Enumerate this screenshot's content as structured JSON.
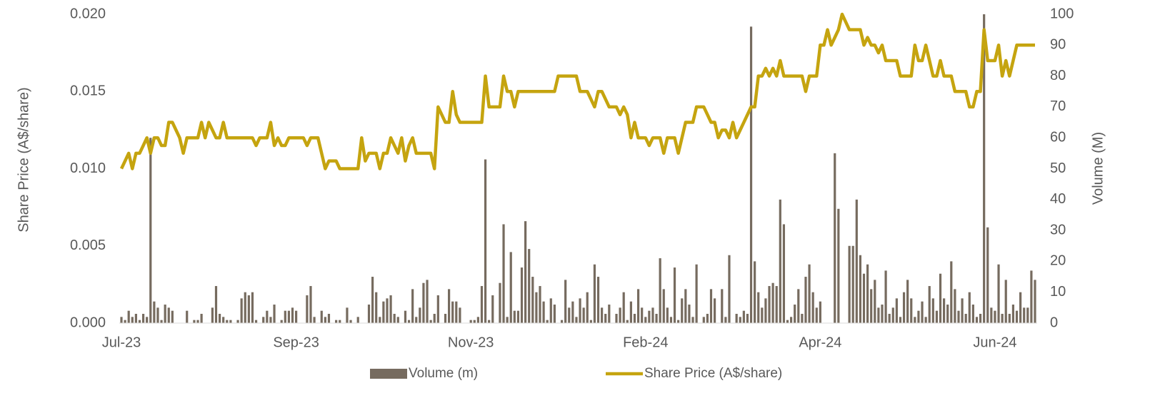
{
  "chart_data": {
    "type": "combo",
    "y_label": "Share Price (A$/share)",
    "y2_label": "Volume (M)",
    "categories": [
      "Jul-23",
      null,
      null,
      null,
      null,
      null,
      null,
      null,
      null,
      null,
      null,
      null,
      null,
      null,
      null,
      null,
      null,
      null,
      null,
      null,
      null,
      null,
      null,
      null,
      null,
      null,
      null,
      null,
      null,
      null,
      null,
      null,
      null,
      null,
      null,
      null,
      null,
      null,
      null,
      null,
      null,
      null,
      null,
      null,
      null,
      null,
      null,
      null,
      "Sep-23",
      null,
      null,
      null,
      null,
      null,
      null,
      null,
      null,
      null,
      null,
      null,
      null,
      null,
      null,
      null,
      null,
      null,
      null,
      null,
      null,
      null,
      null,
      null,
      null,
      null,
      null,
      null,
      null,
      null,
      null,
      null,
      null,
      null,
      null,
      null,
      null,
      null,
      null,
      null,
      null,
      null,
      null,
      null,
      null,
      null,
      null,
      null,
      "Nov-23",
      null,
      null,
      null,
      null,
      null,
      null,
      null,
      null,
      null,
      null,
      null,
      null,
      null,
      null,
      null,
      null,
      null,
      null,
      null,
      null,
      null,
      null,
      null,
      null,
      null,
      null,
      null,
      null,
      null,
      null,
      null,
      null,
      null,
      null,
      null,
      null,
      null,
      null,
      null,
      null,
      null,
      null,
      null,
      null,
      null,
      null,
      null,
      "Feb-24",
      null,
      null,
      null,
      null,
      null,
      null,
      null,
      null,
      null,
      null,
      null,
      null,
      null,
      null,
      null,
      null,
      null,
      null,
      null,
      null,
      null,
      null,
      null,
      null,
      null,
      null,
      null,
      null,
      null,
      null,
      null,
      null,
      null,
      null,
      null,
      null,
      null,
      null,
      null,
      null,
      null,
      null,
      null,
      null,
      null,
      null,
      null,
      "Apr-24",
      null,
      null,
      null,
      null,
      null,
      null,
      null,
      null,
      null,
      null,
      null,
      null,
      null,
      null,
      null,
      null,
      null,
      null,
      null,
      null,
      null,
      null,
      null,
      null,
      null,
      null,
      null,
      null,
      null,
      null,
      null,
      null,
      null,
      null,
      null,
      null,
      null,
      null,
      null,
      null,
      null,
      null,
      null,
      null,
      null,
      null,
      null,
      "Jun-24",
      null,
      null,
      null,
      null,
      null,
      null,
      null,
      null,
      null,
      null,
      null
    ],
    "series": [
      {
        "name": "Volume (m)",
        "type": "bar",
        "axis": "y2",
        "color": "#766b5f",
        "values": [
          2,
          1,
          4,
          2,
          3,
          1,
          3,
          2,
          60,
          7,
          5,
          1,
          6,
          5,
          4,
          0,
          0,
          0,
          4,
          0,
          1,
          1,
          3,
          0,
          0,
          5,
          12,
          3,
          2,
          1,
          1,
          0,
          1,
          8,
          10,
          9,
          10,
          1,
          0,
          2,
          4,
          2,
          6,
          0,
          1,
          4,
          4,
          5,
          4,
          0,
          0,
          9,
          12,
          2,
          0,
          4,
          2,
          3,
          0,
          1,
          1,
          0,
          5,
          1,
          0,
          2,
          0,
          0,
          6,
          15,
          10,
          2,
          7,
          8,
          9,
          3,
          2,
          0,
          4,
          1,
          11,
          2,
          5,
          13,
          14,
          1,
          3,
          9,
          0,
          3,
          11,
          7,
          7,
          5,
          0,
          0,
          1,
          1,
          2,
          12,
          53,
          1,
          9,
          0,
          13,
          32,
          2,
          23,
          4,
          4,
          18,
          33,
          24,
          15,
          10,
          12,
          7,
          1,
          8,
          6,
          0,
          1,
          14,
          5,
          7,
          2,
          8,
          5,
          10,
          1,
          19,
          15,
          5,
          3,
          6,
          0,
          3,
          5,
          10,
          1,
          7,
          3,
          11,
          5,
          2,
          4,
          5,
          3,
          21,
          11,
          5,
          2,
          18,
          1,
          8,
          11,
          6,
          2,
          19,
          0,
          2,
          3,
          11,
          8,
          0,
          11,
          2,
          22,
          0,
          3,
          2,
          4,
          3,
          96,
          20,
          10,
          5,
          8,
          12,
          13,
          12,
          40,
          32,
          1,
          2,
          6,
          11,
          3,
          15,
          19,
          10,
          5,
          7,
          0,
          0,
          0,
          55,
          37,
          0,
          0,
          25,
          25,
          40,
          22,
          16,
          19,
          11,
          14,
          5,
          6,
          17,
          3,
          5,
          8,
          2,
          10,
          14,
          8,
          2,
          4,
          7,
          2,
          12,
          8,
          4,
          16,
          8,
          6,
          20,
          11,
          4,
          8,
          3,
          10,
          6,
          2,
          3,
          100,
          31,
          5,
          4,
          19,
          3,
          14,
          3,
          6,
          4,
          10,
          5,
          5,
          17,
          14
        ]
      },
      {
        "name": "Share Price (A$/share)",
        "type": "line",
        "axis": "y",
        "color": "#c5a40f",
        "values": [
          0.01,
          0.0105,
          0.011,
          0.01,
          0.011,
          0.011,
          0.0115,
          0.012,
          0.011,
          0.012,
          0.012,
          0.0115,
          0.0115,
          0.013,
          0.013,
          0.0125,
          0.012,
          0.011,
          0.012,
          0.012,
          0.012,
          0.012,
          0.013,
          0.012,
          0.013,
          0.0125,
          0.012,
          0.012,
          0.013,
          0.012,
          0.012,
          0.012,
          0.012,
          0.012,
          0.012,
          0.012,
          0.012,
          0.0115,
          0.012,
          0.012,
          0.012,
          0.013,
          0.0115,
          0.012,
          0.0115,
          0.0115,
          0.012,
          0.012,
          0.012,
          0.012,
          0.012,
          0.0115,
          0.012,
          0.012,
          0.012,
          0.011,
          0.01,
          0.0105,
          0.0105,
          0.0105,
          0.01,
          0.01,
          0.01,
          0.01,
          0.01,
          0.01,
          0.012,
          0.0105,
          0.011,
          0.011,
          0.011,
          0.01,
          0.011,
          0.011,
          0.012,
          0.0115,
          0.011,
          0.012,
          0.0105,
          0.0115,
          0.012,
          0.011,
          0.011,
          0.011,
          0.011,
          0.011,
          0.01,
          0.014,
          0.0135,
          0.013,
          0.013,
          0.015,
          0.0135,
          0.013,
          0.013,
          0.013,
          0.013,
          0.013,
          0.013,
          0.013,
          0.016,
          0.014,
          0.014,
          0.014,
          0.014,
          0.016,
          0.015,
          0.015,
          0.014,
          0.015,
          0.015,
          0.015,
          0.015,
          0.015,
          0.015,
          0.015,
          0.015,
          0.015,
          0.015,
          0.015,
          0.016,
          0.016,
          0.016,
          0.016,
          0.016,
          0.016,
          0.015,
          0.015,
          0.015,
          0.0145,
          0.014,
          0.015,
          0.015,
          0.0145,
          0.014,
          0.014,
          0.014,
          0.0135,
          0.014,
          0.0135,
          0.012,
          0.013,
          0.012,
          0.012,
          0.012,
          0.0115,
          0.012,
          0.012,
          0.012,
          0.011,
          0.012,
          0.012,
          0.012,
          0.011,
          0.012,
          0.013,
          0.013,
          0.013,
          0.014,
          0.014,
          0.014,
          0.0135,
          0.013,
          0.013,
          0.012,
          0.0125,
          0.0125,
          0.012,
          0.013,
          0.012,
          0.0125,
          0.013,
          0.0135,
          0.014,
          0.014,
          0.016,
          0.016,
          0.0165,
          0.016,
          0.0165,
          0.016,
          0.017,
          0.016,
          0.016,
          0.016,
          0.016,
          0.016,
          0.016,
          0.015,
          0.016,
          0.016,
          0.016,
          0.018,
          0.018,
          0.019,
          0.018,
          0.0185,
          0.019,
          0.02,
          0.0195,
          0.019,
          0.019,
          0.019,
          0.019,
          0.018,
          0.0185,
          0.018,
          0.018,
          0.0175,
          0.018,
          0.017,
          0.017,
          0.017,
          0.017,
          0.016,
          0.016,
          0.016,
          0.016,
          0.018,
          0.017,
          0.017,
          0.018,
          0.017,
          0.016,
          0.016,
          0.017,
          0.016,
          0.016,
          0.016,
          0.015,
          0.015,
          0.015,
          0.015,
          0.014,
          0.014,
          0.015,
          0.015,
          0.019,
          0.017,
          0.017,
          0.017,
          0.018,
          0.016,
          0.017,
          0.016,
          0.017,
          0.018,
          0.018,
          0.018,
          0.018,
          0.018,
          0.018
        ]
      }
    ],
    "ylim": [
      0,
      0.02
    ],
    "yticks": [
      {
        "value": 0,
        "label": "0.000"
      },
      {
        "value": 0.005,
        "label": "0.005"
      },
      {
        "value": 0.01,
        "label": "0.010"
      },
      {
        "value": 0.015,
        "label": "0.015"
      },
      {
        "value": 0.02,
        "label": "0.020"
      }
    ],
    "y2lim": [
      0,
      100
    ],
    "y2ticks": [
      0,
      10,
      20,
      30,
      40,
      50,
      60,
      70,
      80,
      90,
      100
    ],
    "grid": false,
    "legend": "bottom"
  }
}
